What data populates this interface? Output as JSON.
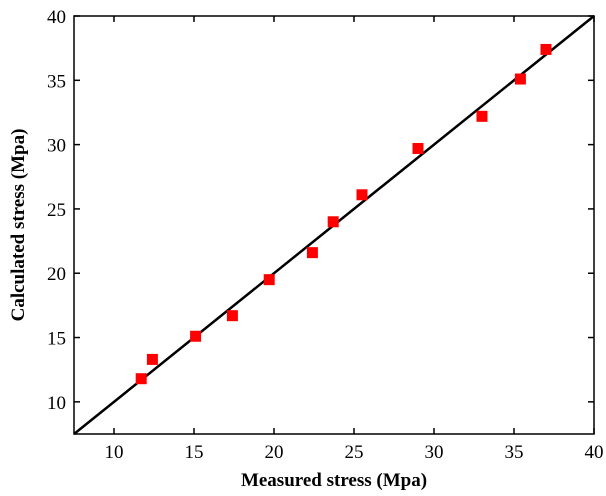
{
  "chart_data": {
    "type": "scatter",
    "title": "",
    "xlabel": "Measured stress (Mpa)",
    "ylabel": "Calculated stress (Mpa)",
    "xlim": [
      7.5,
      40
    ],
    "ylim": [
      7.5,
      40
    ],
    "x_ticks": [
      10,
      15,
      20,
      25,
      30,
      35,
      40
    ],
    "y_ticks": [
      10,
      15,
      20,
      25,
      30,
      35,
      40
    ],
    "grid": false,
    "legend": "none",
    "series": [
      {
        "marker": "square",
        "color": "#ff0000",
        "points": [
          [
            11.7,
            11.8
          ],
          [
            12.4,
            13.3
          ],
          [
            15.1,
            15.1
          ],
          [
            17.4,
            16.7
          ],
          [
            19.7,
            19.5
          ],
          [
            22.4,
            21.6
          ],
          [
            23.7,
            24.0
          ],
          [
            25.5,
            26.1
          ],
          [
            29.0,
            29.7
          ],
          [
            33.0,
            32.2
          ],
          [
            35.4,
            35.1
          ],
          [
            37.0,
            37.4
          ]
        ]
      }
    ],
    "reference_line": {
      "from": [
        7.5,
        7.5
      ],
      "to": [
        40,
        40
      ],
      "color": "#000000"
    }
  }
}
